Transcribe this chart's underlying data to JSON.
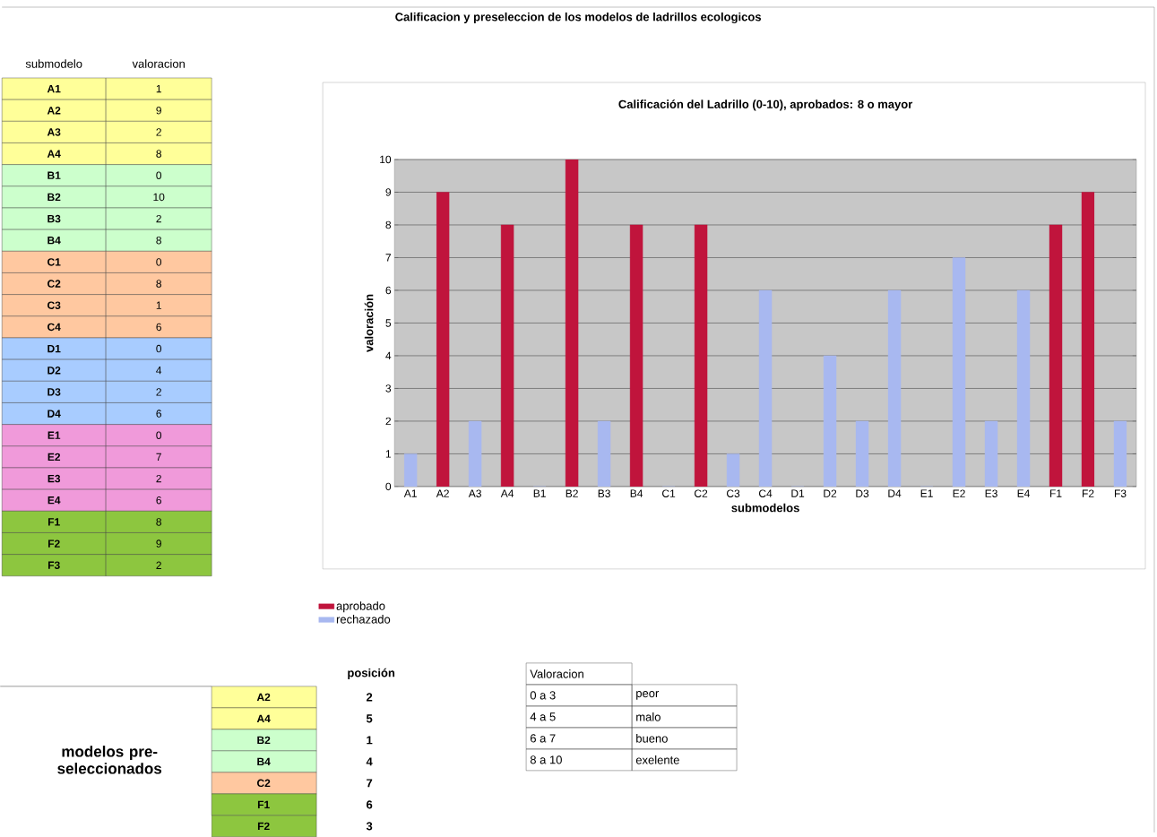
{
  "chart_data": [
    {
      "type": "bar",
      "title": "Calificación del Ladrillo (0-10), aprobados: 8 o mayor",
      "xlabel": "submodelos",
      "ylabel": "valoración",
      "categories": [
        "A1",
        "A2",
        "A3",
        "A4",
        "B1",
        "B2",
        "B3",
        "B4",
        "C1",
        "C2",
        "C3",
        "C4",
        "D1",
        "D2",
        "D3",
        "D4",
        "E1",
        "E2",
        "E3",
        "E4",
        "F1",
        "F2",
        "F3"
      ],
      "series": [
        {
          "name": "aprobado",
          "color": "#c0143c",
          "values": [
            null,
            9,
            null,
            8,
            null,
            10,
            null,
            8,
            null,
            8,
            null,
            null,
            null,
            null,
            null,
            null,
            null,
            null,
            null,
            null,
            8,
            9,
            null
          ]
        },
        {
          "name": "rechazado",
          "color": "#a8b8f0",
          "values": [
            1,
            null,
            2,
            null,
            0,
            null,
            2,
            null,
            0,
            null,
            1,
            6,
            0,
            4,
            2,
            6,
            0,
            7,
            2,
            6,
            null,
            null,
            2
          ]
        }
      ],
      "ylim": [
        0,
        10
      ],
      "yticks": [
        0,
        1,
        2,
        3,
        4,
        5,
        6,
        7,
        8,
        9,
        10
      ],
      "grid": "y",
      "legend": "bottom left"
    },
    {
      "type": "other",
      "title": "Calificacion y preseleccion de los modelos de ladrillos ecologicos",
      "annotations": [
        "submodelo",
        "valoracion",
        "A1",
        "1",
        "A2",
        "9",
        "A3",
        "2",
        "A4",
        "8",
        "B1",
        "0",
        "B2",
        "10",
        "B3",
        "2",
        "B4",
        "8",
        "C1",
        "0",
        "C2",
        "8",
        "C3",
        "1",
        "C4",
        "6",
        "D1",
        "0",
        "D2",
        "4",
        "D3",
        "2",
        "D4",
        "6",
        "E1",
        "0",
        "E2",
        "7",
        "E3",
        "2",
        "E4",
        "6",
        "F1",
        "8",
        "F2",
        "9",
        "F3",
        "2",
        "modelos pre-seleccionados",
        "posición",
        "A2",
        "2",
        "A4",
        "5",
        "B2",
        "1",
        "B4",
        "4",
        "C2",
        "7",
        "F1",
        "6",
        "F2",
        "3",
        "Valoracion",
        "0 a 3",
        "peor",
        "4 a 5",
        "malo",
        "6 a 7",
        "bueno",
        "8 a 10",
        "exelente"
      ]
    }
  ]
}
